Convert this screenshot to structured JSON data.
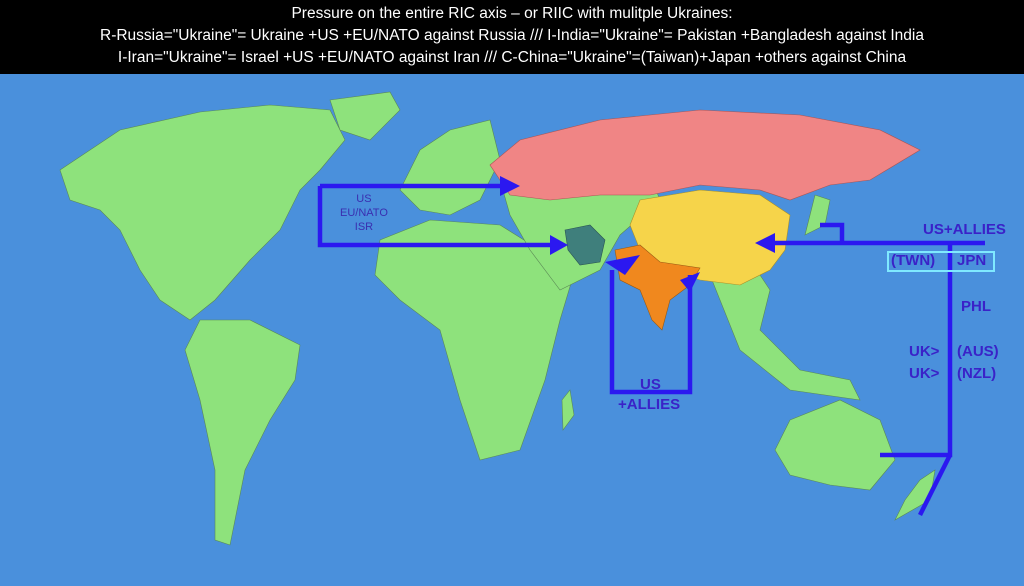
{
  "header": {
    "line1": "Pressure on the entire RIC axis – or RIIC with mulitple Ukraines:",
    "line2": "R-Russia=\"Ukraine\"= Ukraine +US +EU/NATO against Russia   ///   I-India=\"Ukraine\"= Pakistan +Bangladesh against India",
    "line3": "I-Iran=\"Ukraine\"= Israel  +US +EU/NATO against Iran   ///   C-China=\"Ukraine\"=(Taiwan)+Japan  +others against China"
  },
  "labels": {
    "west_us": "US",
    "west_eu": "EU/NATO",
    "west_isr": "ISR",
    "india_us": "US",
    "india_allies": "+ALLIES",
    "pacific_allies": "US+ALLIES",
    "twn": "(TWN)",
    "jpn": "JPN",
    "phl": "PHL",
    "uk1": "UK>",
    "aus": "(AUS)",
    "uk2": "UK>",
    "nzl": "(NZL)"
  },
  "colors": {
    "ocean": "#4a90dc",
    "land": "#8ee27c",
    "russia": "#f08585",
    "china": "#f6d44a",
    "india": "#f0881e",
    "iran": "#3f7f7c",
    "arrows": "#2b18f0",
    "highlight_box": "#7fe9ff"
  }
}
